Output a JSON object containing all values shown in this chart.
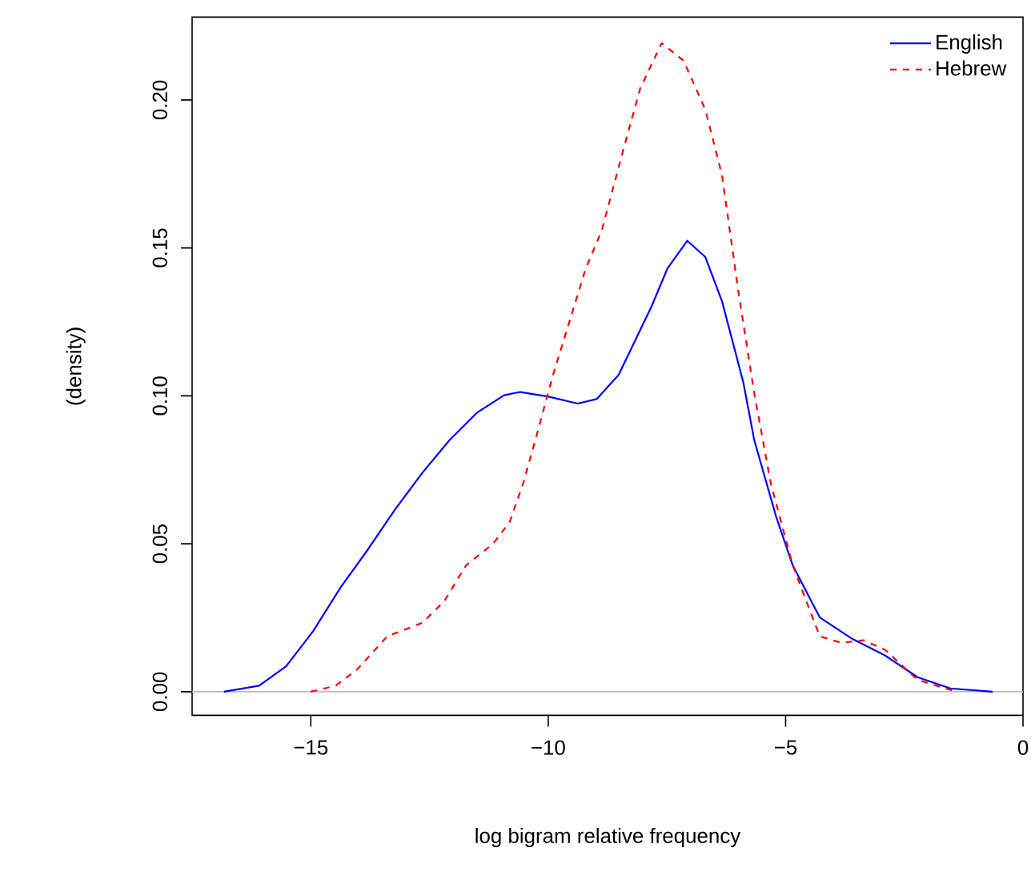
{
  "chart_data": {
    "type": "line",
    "xlabel": "log bigram relative frequency",
    "ylabel": "(density)",
    "xlim": [
      -17.5,
      0
    ],
    "ylim": [
      -0.008,
      0.228
    ],
    "xticks": [
      {
        "value": -15,
        "label": "−15"
      },
      {
        "value": -10,
        "label": "−10"
      },
      {
        "value": -5,
        "label": "−5"
      },
      0
    ],
    "yticks": [
      {
        "value": 0,
        "label": "0.00"
      },
      {
        "value": 0.05,
        "label": "0.05"
      },
      {
        "value": 0.1,
        "label": "0.10"
      },
      {
        "value": 0.15,
        "label": "0.15"
      },
      {
        "value": 0.2,
        "label": "0.20"
      }
    ],
    "legend": "top right",
    "grid": false,
    "marker": "none",
    "ref_lines": [
      {
        "axis": "y",
        "value": 0,
        "color": "#bebebe"
      }
    ],
    "series": [
      {
        "name": "English",
        "color": "#0000ff",
        "line_style": "solid",
        "x": [
          -16.83,
          -16.09,
          -15.52,
          -14.95,
          -14.37,
          -13.8,
          -13.23,
          -12.65,
          -12.08,
          -11.5,
          -10.93,
          -10.59,
          -10.01,
          -9.38,
          -8.98,
          -8.52,
          -7.83,
          -7.49,
          -7.07,
          -6.69,
          -6.34,
          -5.89,
          -5.66,
          -5.2,
          -4.85,
          -4.28,
          -3.59,
          -2.9,
          -2.22,
          -1.53,
          -0.64
        ],
        "values": [
          0,
          0.002,
          0.0086,
          0.0205,
          0.0353,
          0.048,
          0.0615,
          0.074,
          0.085,
          0.0943,
          0.1002,
          0.1013,
          0.0998,
          0.0974,
          0.0989,
          0.107,
          0.13,
          0.143,
          0.1524,
          0.1469,
          0.132,
          0.1045,
          0.085,
          0.0592,
          0.0427,
          0.0251,
          0.0178,
          0.0122,
          0.0049,
          0.0011,
          0
        ]
      },
      {
        "name": "Hebrew",
        "color": "#ff0000",
        "line_style": "dashed",
        "x": [
          -15.0,
          -14.48,
          -14.02,
          -13.39,
          -12.65,
          -12.19,
          -11.73,
          -11.16,
          -10.81,
          -10.53,
          -10.24,
          -9.9,
          -9.56,
          -9.21,
          -8.87,
          -8.41,
          -8.06,
          -7.61,
          -7.15,
          -6.69,
          -6.34,
          -6.0,
          -5.66,
          -5.31,
          -4.85,
          -4.28,
          -3.82,
          -3.36,
          -2.9,
          -2.22,
          -1.41
        ],
        "values": [
          0,
          0.002,
          0.0076,
          0.0187,
          0.0233,
          0.0306,
          0.0427,
          0.05,
          0.0574,
          0.0703,
          0.0869,
          0.107,
          0.1247,
          0.143,
          0.156,
          0.1837,
          0.204,
          0.2192,
          0.2133,
          0.1967,
          0.1746,
          0.1358,
          0.1008,
          0.0703,
          0.0427,
          0.0187,
          0.0165,
          0.0174,
          0.0141,
          0.004,
          0
        ]
      }
    ]
  }
}
